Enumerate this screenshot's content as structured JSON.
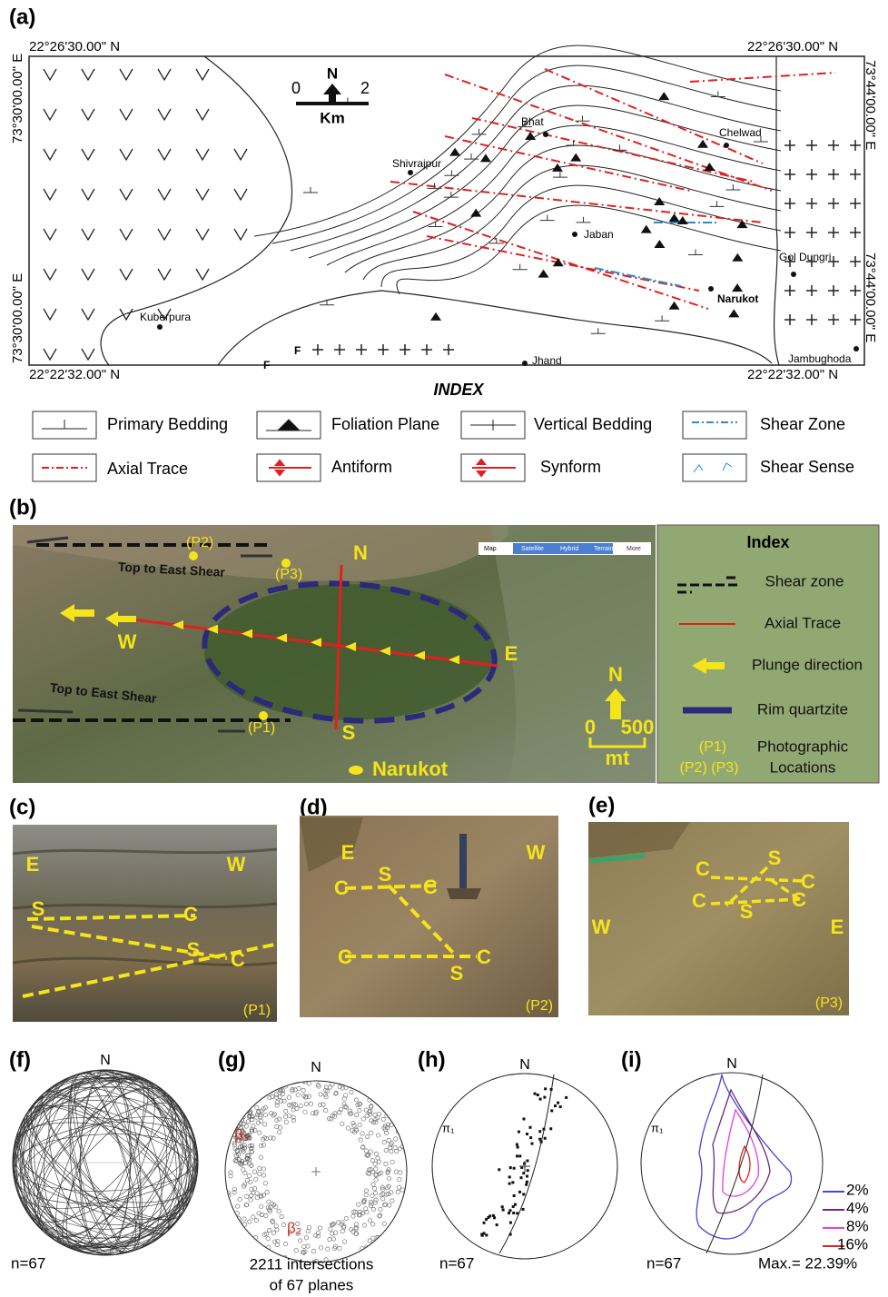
{
  "panel_a": {
    "label": "(a)",
    "coords": {
      "top_left": "22°26'30.00\" N",
      "top_right": "22°26'30.00\" N",
      "bottom_left": "22°22'32.00\" N",
      "bottom_right": "22°22'32.00\" N",
      "left_top": "73°30'00.00\" E",
      "left_bottom": "73°30'00.00\" E",
      "right_top": "73°44'00.00\" E",
      "right_bottom": "73°44'00.00\" E"
    },
    "scale": {
      "north": "N",
      "min": "0",
      "max": "2",
      "unit": "Km"
    },
    "places": [
      "Shivrajpur",
      "Bhat",
      "Chelwad",
      "Jaban",
      "Gol Dungri",
      "Narukot",
      "Kuberpura",
      "Jhand",
      "Jambughoda"
    ],
    "fault_labels": [
      "F",
      "F"
    ],
    "index_title": "INDEX",
    "legend": [
      "Primary Bedding",
      "Foliation Plane",
      "Vertical Bedding",
      "Shear Zone",
      "Axial Trace",
      "Antiform",
      "Synform",
      "Shear Sense"
    ]
  },
  "panel_b": {
    "label": "(b)",
    "map_buttons": [
      "Map",
      "Satellite",
      "Hybrid",
      "Terrain",
      "More"
    ],
    "points": [
      "(P1)",
      "(P2)",
      "(P3)"
    ],
    "shear_labels": [
      "Top to East Shear",
      "Top to East Shear"
    ],
    "directions": {
      "N": "N",
      "S": "S",
      "W": "W",
      "E": "E"
    },
    "north": "N",
    "scale": {
      "min": "0",
      "max": "500",
      "unit": "mt"
    },
    "town": "Narukot",
    "index": {
      "title": "Index",
      "items": [
        "Shear zone",
        "Axial Trace",
        "Plunge direction",
        "Rim quartzite"
      ],
      "locations_points": [
        "(P1)",
        "(P2) (P3)"
      ],
      "locations_label": [
        "Photographic",
        "Locations"
      ]
    }
  },
  "panel_c": {
    "label": "(c)",
    "labels": [
      "E",
      "W",
      "S",
      "C",
      "S",
      "C"
    ],
    "location": "(P1)"
  },
  "panel_d": {
    "label": "(d)",
    "labels": [
      "E",
      "W",
      "C",
      "S",
      "C",
      "C",
      "S",
      "C"
    ],
    "location": "(P2)"
  },
  "panel_e": {
    "label": "(e)",
    "labels": [
      "C",
      "S",
      "C",
      "C",
      "S",
      "C",
      "W",
      "E"
    ],
    "location": "(P3)"
  },
  "panel_f": {
    "label": "(f)",
    "north": "N",
    "count": "n=67"
  },
  "panel_g": {
    "label": "(g)",
    "north": "N",
    "beta_labels": [
      "β₁",
      "β₂"
    ],
    "caption": [
      "2211 intersections",
      "of 67 planes"
    ]
  },
  "panel_h": {
    "label": "(h)",
    "north": "N",
    "pi_label": "π₁",
    "count": "n=67"
  },
  "panel_i": {
    "label": "(i)",
    "north": "N",
    "pi_label": "π₁",
    "legend": [
      "2%",
      "4%",
      "8%",
      "16%"
    ],
    "count": "n=67",
    "max": "Max.= 22.39%"
  }
}
